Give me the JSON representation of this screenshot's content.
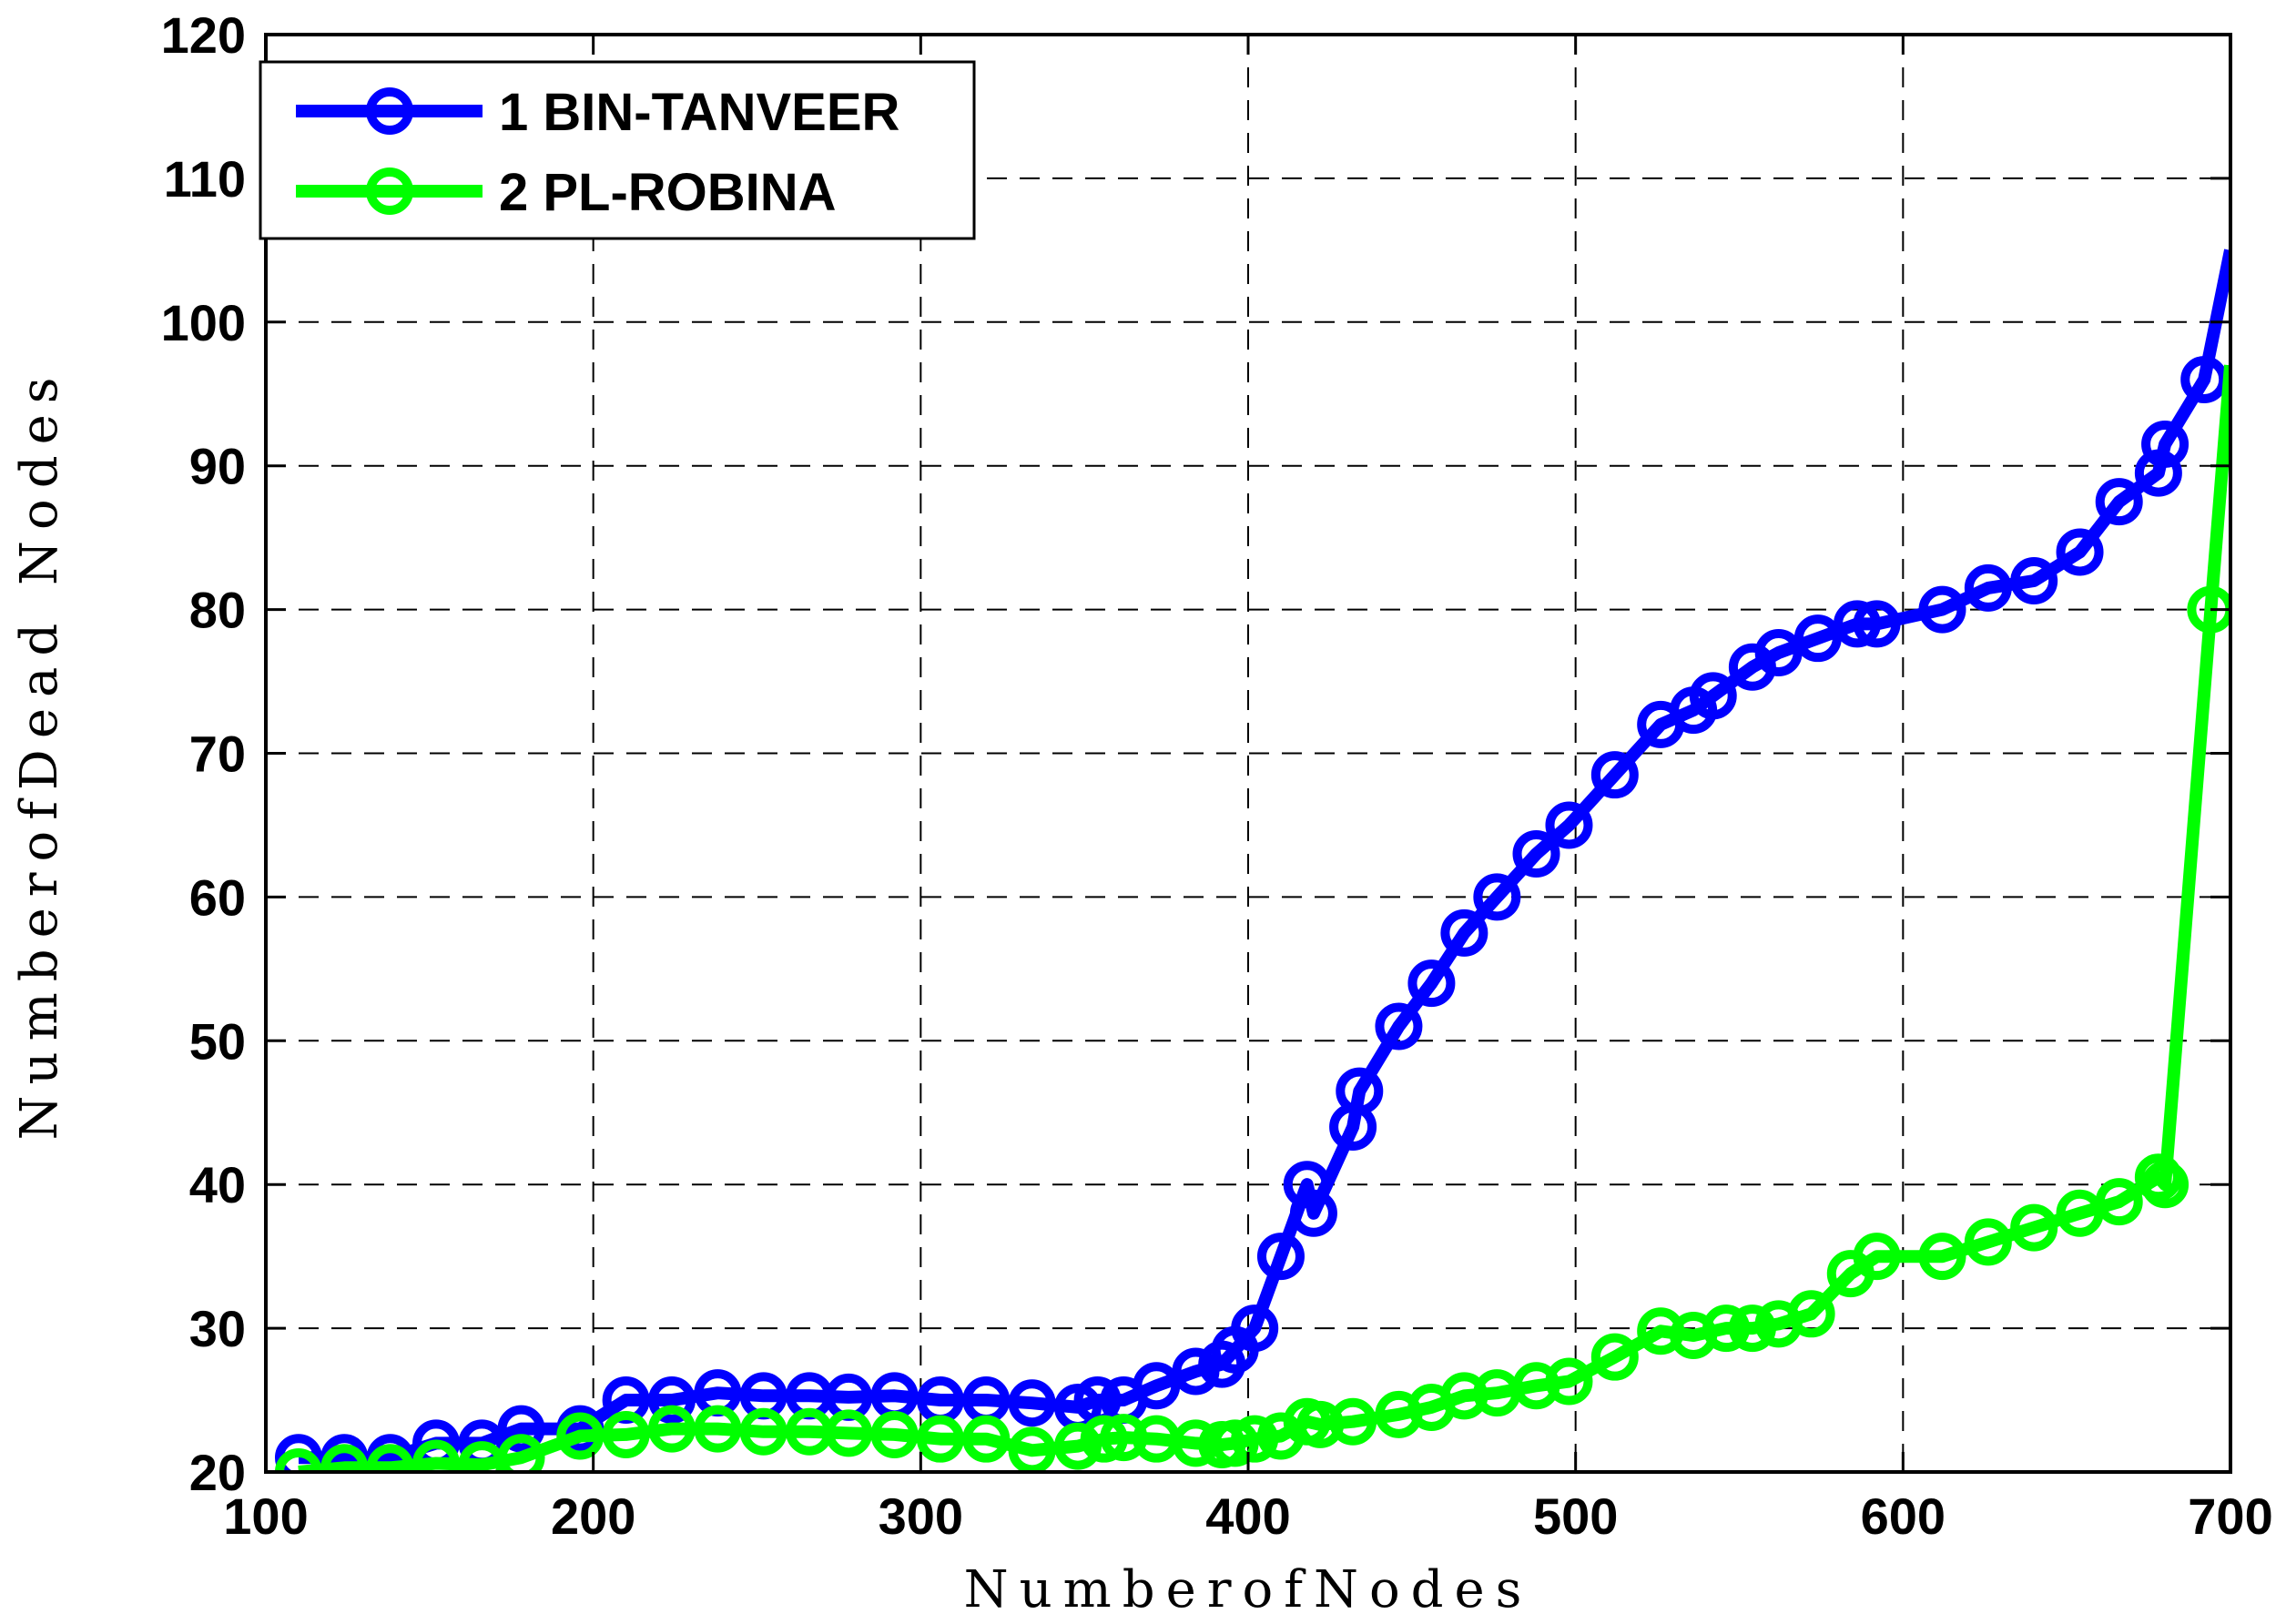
{
  "chart_data": {
    "type": "line",
    "xlabel": "NumberofNodes",
    "ylabel": "NumberofDead Nodes",
    "xlim": [
      100,
      700
    ],
    "ylim": [
      20,
      120
    ],
    "xticks": [
      100,
      200,
      300,
      400,
      500,
      600,
      700
    ],
    "yticks": [
      20,
      30,
      40,
      50,
      60,
      70,
      80,
      90,
      100,
      110,
      120
    ],
    "grid": true,
    "grid_style": "dashed",
    "legend_position": "top-left",
    "series": [
      {
        "name": "1 BIN-TANVEER",
        "color": "#0000ff",
        "marker": "circle-open",
        "x": [
          110,
          124,
          138,
          152,
          166,
          178,
          196,
          210,
          224,
          238,
          252,
          266,
          278,
          292,
          306,
          320,
          334,
          348,
          354,
          362,
          372,
          384,
          392,
          396,
          402,
          410,
          418,
          420,
          432,
          434,
          446,
          456,
          466,
          476,
          488,
          498,
          512,
          526,
          536,
          542,
          554,
          562,
          574,
          586,
          592,
          612,
          626,
          640,
          654,
          666,
          678,
          680,
          692,
          700
        ],
        "y": [
          21,
          21,
          21,
          22,
          22,
          23,
          23,
          25,
          25,
          25.5,
          25.3,
          25.3,
          25.2,
          25.3,
          25,
          25,
          24.8,
          24.5,
          25,
          25,
          26,
          27,
          27.5,
          28.5,
          30,
          35,
          40,
          38,
          44,
          46.5,
          51,
          54,
          57.5,
          60,
          63,
          65,
          68.5,
          72,
          73,
          74,
          76,
          77,
          78,
          79,
          79,
          80,
          81.5,
          82,
          84,
          87.5,
          89.5,
          91.5,
          96,
          105
        ]
      },
      {
        "name": "2 PL-ROBINA",
        "color": "#00ff00",
        "marker": "circle-open",
        "x": [
          110,
          124,
          138,
          152,
          166,
          178,
          196,
          210,
          224,
          238,
          252,
          266,
          278,
          292,
          306,
          320,
          334,
          348,
          356,
          362,
          372,
          384,
          392,
          396,
          402,
          410,
          418,
          422,
          432,
          446,
          456,
          466,
          476,
          488,
          498,
          512,
          526,
          536,
          546,
          554,
          562,
          572,
          584,
          592,
          612,
          626,
          640,
          654,
          666,
          678,
          680,
          694,
          700
        ],
        "y": [
          20,
          20.3,
          20.3,
          20.6,
          20.5,
          21,
          22.5,
          22.6,
          23,
          23,
          22.8,
          22.8,
          22.7,
          22.6,
          22.3,
          22.3,
          21.5,
          21.8,
          22.3,
          22.4,
          22.3,
          22,
          21.9,
          22,
          22.3,
          22.5,
          23.5,
          23.3,
          23.5,
          24,
          24.5,
          25.3,
          25.5,
          26,
          26.3,
          28,
          29.8,
          29.5,
          30,
          30,
          30.3,
          31,
          33.8,
          35,
          35,
          36,
          37,
          38,
          38.8,
          40.5,
          40,
          80,
          97
        ]
      }
    ]
  }
}
